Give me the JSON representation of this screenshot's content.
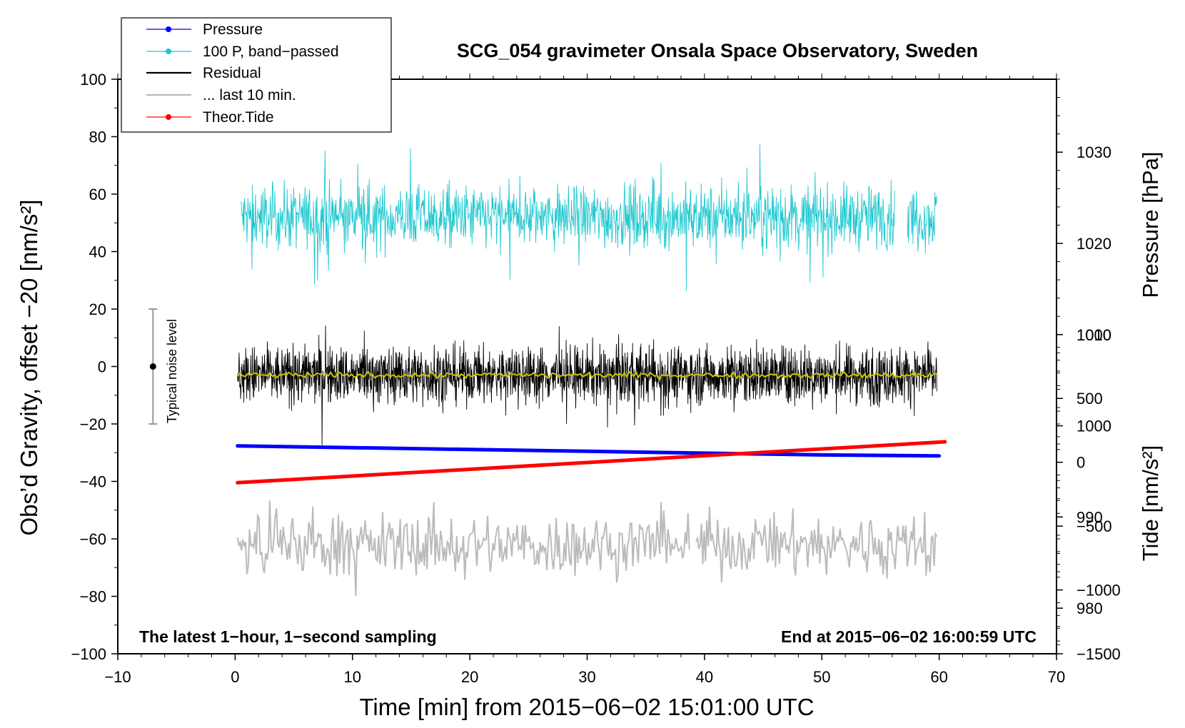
{
  "chart_data": {
    "type": "line",
    "title": "SCG_054 gravimeter Onsala Space Observatory, Sweden",
    "xlabel": "Time [min] from 2015−06−02 15:01:00 UTC",
    "ylabel": "Obs’d Gravity, offset −20 [nm/s²]",
    "ylabel_pressure": "Pressure [hPa]",
    "ylabel_tide": "Tide [nm/s²]",
    "xlim": [
      -10,
      70
    ],
    "ylim": [
      -100,
      100
    ],
    "pressure_range": [
      975,
      1038
    ],
    "tide_range": [
      -1500,
      3000
    ],
    "x_ticks": [
      -10,
      0,
      10,
      20,
      30,
      40,
      50,
      60,
      70
    ],
    "x_tick_labels": [
      "−10",
      "0",
      "10",
      "20",
      "30",
      "40",
      "50",
      "60",
      "70"
    ],
    "y_ticks": [
      -100,
      -80,
      -60,
      -40,
      -20,
      0,
      20,
      40,
      60,
      80,
      100
    ],
    "y_tick_labels": [
      "−100",
      "−80",
      "−60",
      "−40",
      "−20",
      "0",
      "20",
      "40",
      "60",
      "80",
      "100"
    ],
    "pressure_ticks": [
      980,
      990,
      1000,
      1010,
      1020,
      1030
    ],
    "pressure_tick_labels": [
      "980",
      "990",
      "1000",
      "1010",
      "1020",
      "1030"
    ],
    "tide_ticks": [
      -1500,
      -1000,
      -500,
      0,
      500,
      1000
    ],
    "tide_tick_labels": [
      "−1500",
      "−1000",
      "−500",
      "0",
      "500",
      "1000"
    ],
    "legend": {
      "position": "top-left",
      "entries": [
        {
          "label": "Pressure",
          "color": "#0000ff",
          "marker": true
        },
        {
          "label": "100 P, band−passed",
          "color": "#20c8d0",
          "marker": true
        },
        {
          "label": "Residual",
          "color": "#000000",
          "marker": false
        },
        {
          "label": "... last 10 min.",
          "color": "#bbbbbb",
          "marker": false
        },
        {
          "label": "Theor.Tide",
          "color": "#ff0000",
          "marker": true
        }
      ]
    },
    "series": [
      {
        "name": "Pressure",
        "color": "#0000ff",
        "axis": "pressure",
        "x": [
          0.2,
          10,
          20,
          30,
          40,
          50,
          60
        ],
        "values": [
          997.8,
          997.6,
          997.4,
          997.2,
          997.0,
          996.8,
          996.7
        ]
      },
      {
        "name": "100 P, band−passed",
        "color": "#20c8d0",
        "axis": "left",
        "center": 52,
        "amplitude": 12,
        "x_range": [
          0.5,
          59.8
        ]
      },
      {
        "name": "Residual",
        "color": "#000000",
        "axis": "left",
        "center": -3,
        "amplitude": 11,
        "x_range": [
          0.2,
          59.8
        ]
      },
      {
        "name": "Residual, smoothed",
        "color": "#c8c800",
        "axis": "left",
        "center": -3,
        "x_range": [
          0.2,
          59.8
        ]
      },
      {
        "name": "... last 10 min.",
        "color": "#bbbbbb",
        "axis": "left",
        "center": -62,
        "amplitude": 12,
        "x_range": [
          0.2,
          59.8
        ]
      },
      {
        "name": "Theor.Tide",
        "color": "#ff0000",
        "axis": "tide",
        "x": [
          0.2,
          60.5
        ],
        "values": [
          -160,
          160
        ]
      }
    ],
    "noise_bar": {
      "label": "Typical noise level",
      "x": -7,
      "center": 0,
      "half_range": 20
    },
    "annotations": [
      {
        "text": "The latest 1−hour, 1−second sampling",
        "position": "bottom-left"
      },
      {
        "text": "End at 2015−06−02 16:00:59 UTC",
        "position": "bottom-right"
      }
    ]
  }
}
